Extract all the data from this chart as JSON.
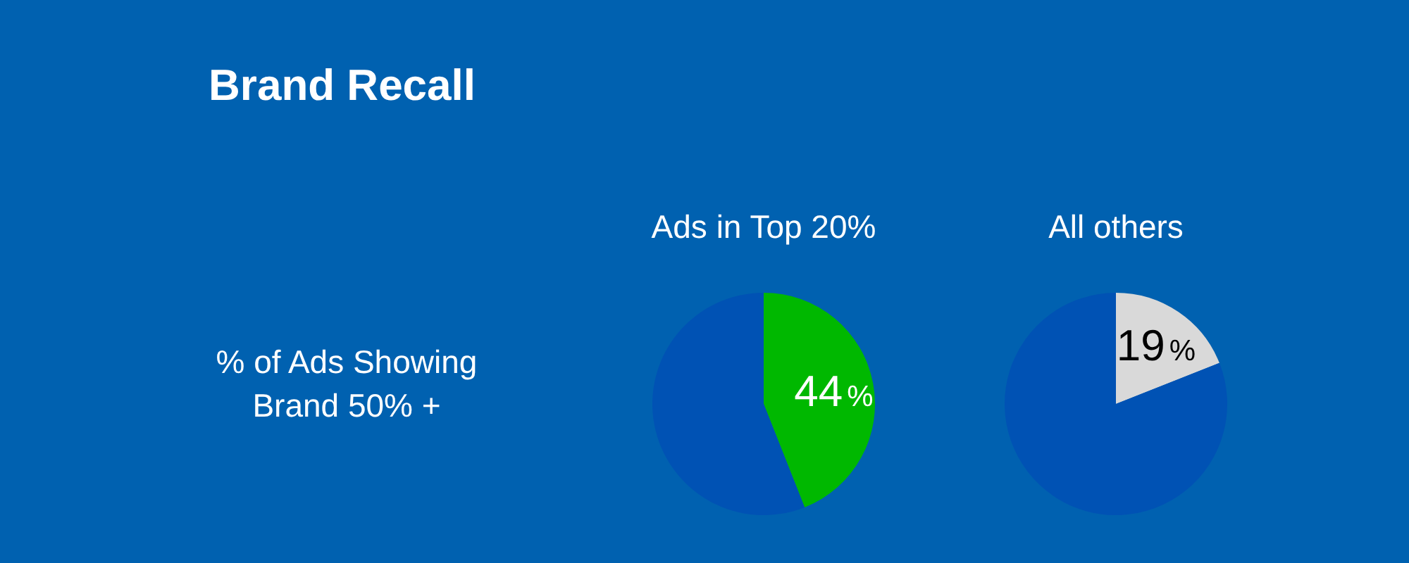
{
  "chart_data": [
    {
      "type": "other",
      "title": "Brand Recall",
      "annotations": [
        "% of Ads Showing Brand 50% +"
      ]
    },
    {
      "type": "pie",
      "title": "Ads in Top 20%",
      "categories": [
        null,
        null
      ],
      "values": [
        44,
        56
      ],
      "colors": [
        "#00b800",
        "#0052b4"
      ],
      "value_labels": [
        "44%",
        null
      ]
    },
    {
      "type": "pie",
      "title": "All others",
      "categories": [
        null,
        null
      ],
      "values": [
        19,
        81
      ],
      "colors": [
        "#d9d9d9",
        "#0052b4"
      ],
      "value_labels": [
        "19%",
        null
      ]
    }
  ]
}
